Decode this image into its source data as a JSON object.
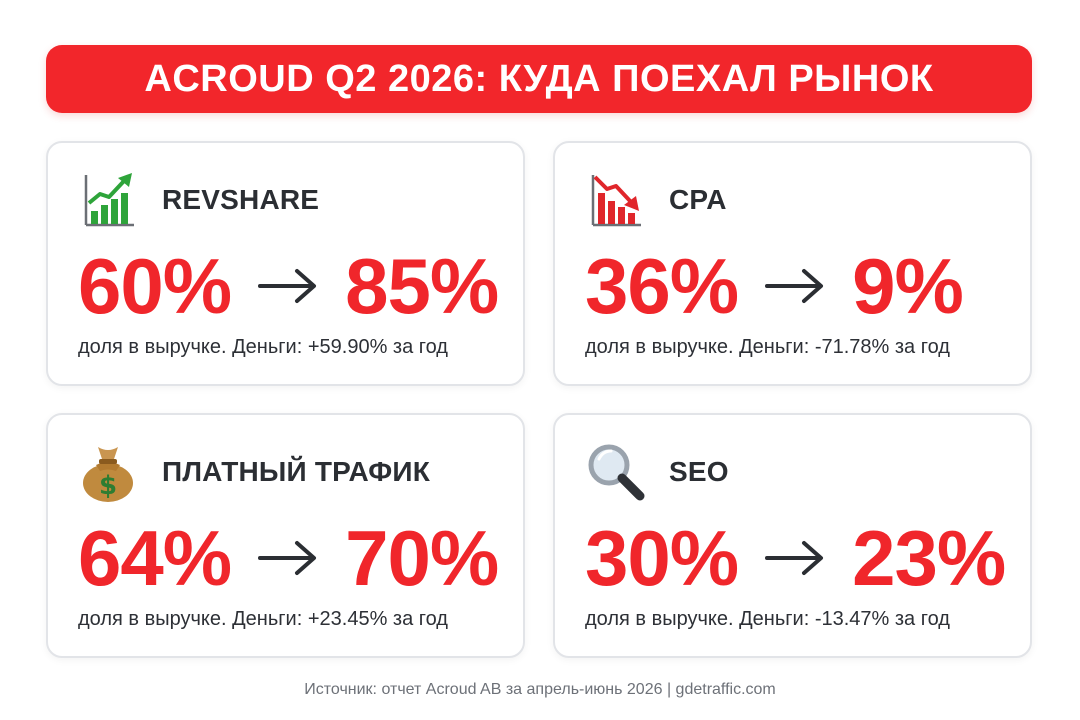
{
  "title": "ACROUD Q2 2026: КУДА ПОЕХАЛ РЫНОК",
  "cards": [
    {
      "label": "REVSHARE",
      "icon": "chart-increasing-icon",
      "from": "60%",
      "to": "85%",
      "caption": "доля в выручке. Деньги: +59.90% за год"
    },
    {
      "label": "CPA",
      "icon": "chart-decreasing-icon",
      "from": "36%",
      "to": "9%",
      "caption": "доля в выручке. Деньги: -71.78% за год"
    },
    {
      "label": "ПЛАТНЫЙ ТРАФИК",
      "icon": "money-bag-icon",
      "from": "64%",
      "to": "70%",
      "caption": "доля в выручке. Деньги: +23.45% за год"
    },
    {
      "label": "SEO",
      "icon": "magnifying-glass-icon",
      "from": "30%",
      "to": "23%",
      "caption": "доля в выручке. Деньги: -13.47% за год"
    }
  ],
  "footer": "Источник: отчет Acroud AB за апрель-июнь 2026 | gdetraffic.com",
  "colors": {
    "accent": "#f2262b",
    "text": "#2b2e33",
    "border": "#e2e4e8"
  }
}
